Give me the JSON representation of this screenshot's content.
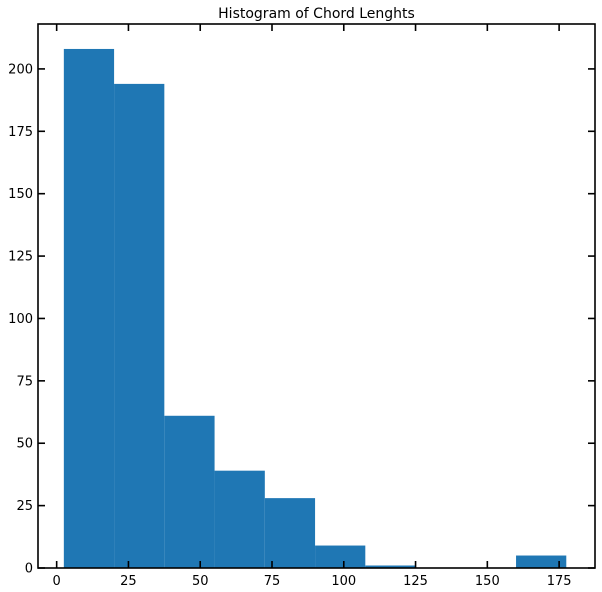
{
  "chart_data": {
    "type": "bar",
    "title": "Histogram of Chord Lenghts",
    "xlabel": "",
    "ylabel": "",
    "bar_color": "#1f77b4",
    "xlim": [
      -6.5,
      187.5
    ],
    "ylim": [
      0,
      218
    ],
    "grid": false,
    "x_ticks": [
      0,
      25,
      50,
      75,
      100,
      125,
      150,
      175
    ],
    "y_ticks": [
      0,
      25,
      50,
      75,
      100,
      125,
      150,
      175,
      200
    ],
    "bins": [
      {
        "start": 2.5,
        "end": 20.0,
        "value": 208
      },
      {
        "start": 20.0,
        "end": 37.5,
        "value": 194
      },
      {
        "start": 37.5,
        "end": 55.0,
        "value": 61
      },
      {
        "start": 55.0,
        "end": 72.5,
        "value": 39
      },
      {
        "start": 72.5,
        "end": 90.0,
        "value": 28
      },
      {
        "start": 90.0,
        "end": 107.5,
        "value": 9
      },
      {
        "start": 107.5,
        "end": 125.0,
        "value": 1
      },
      {
        "start": 125.0,
        "end": 142.5,
        "value": 0
      },
      {
        "start": 142.5,
        "end": 160.0,
        "value": 0
      },
      {
        "start": 160.0,
        "end": 177.5,
        "value": 5
      }
    ]
  }
}
